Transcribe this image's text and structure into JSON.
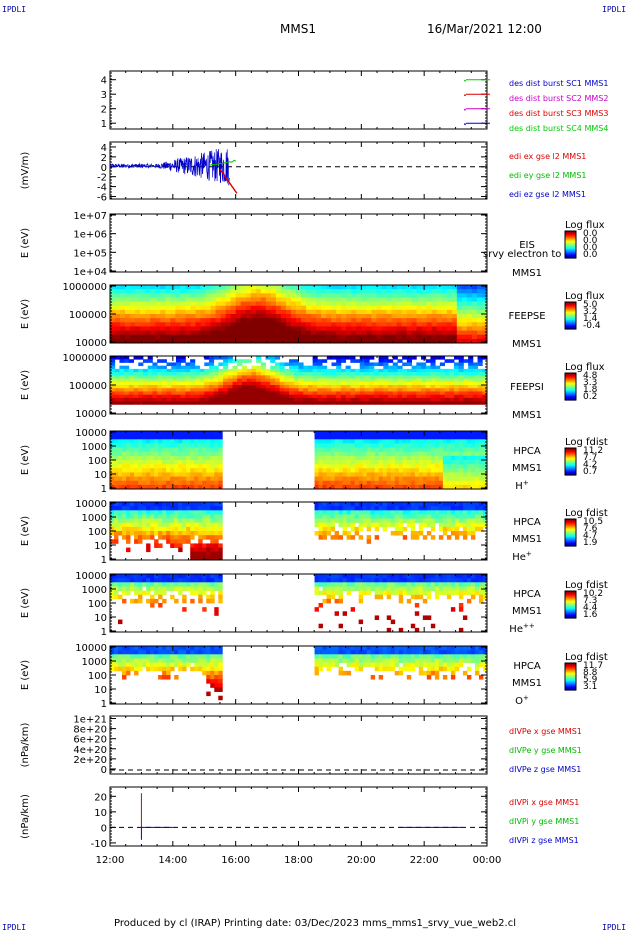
{
  "header": {
    "corner_label": "IPDLI",
    "spacecraft": "MMS1",
    "datetime": "16/Mar/2021 12:00"
  },
  "footer": {
    "text": "Produced by cl (IRAP)    Printing date: 03/Dec/2023    mms_mms1_srvy_vue_web2.cl"
  },
  "chart_data": {
    "type": "multi-panel",
    "x_ticks": [
      "12:00",
      "14:00",
      "16:00",
      "18:00",
      "20:00",
      "22:00",
      "00:00"
    ],
    "x_range_hours": [
      12,
      24
    ],
    "panels": [
      {
        "id": "des-dist",
        "type": "line",
        "y_ticks": [
          "4",
          "3",
          "2",
          "1"
        ],
        "ylim": [
          0.6,
          4.6
        ],
        "legend": [
          {
            "label": "des dist burst SC1 MMS1",
            "color": "#0000cc"
          },
          {
            "label": "des dist burst SC2 MMS2",
            "color": "#cc00cc"
          },
          {
            "label": "des dist burst SC3 MMS3",
            "color": "#dd0000"
          },
          {
            "label": "des dist burst SC4 MMS4",
            "color": "#00cc00"
          }
        ]
      },
      {
        "id": "edi-e",
        "type": "line",
        "ylabel": "(mV/m)",
        "y_ticks": [
          "4",
          "2",
          "0",
          "-2",
          "-4",
          "-6"
        ],
        "ylim": [
          -6.5,
          5
        ],
        "legend": [
          {
            "label": "edi ex gse l2 MMS1",
            "color": "#dd0000"
          },
          {
            "label": "edi ey gse l2 MMS1",
            "color": "#00bb00"
          },
          {
            "label": "edi ez gse l2 MMS1",
            "color": "#0000cc"
          }
        ]
      },
      {
        "id": "eis",
        "type": "heatmap",
        "ylabel": "E (eV)",
        "y_ticks": [
          "1e+07",
          "1e+06",
          "1e+05",
          "1e+04"
        ],
        "side_labels": [
          "EIS",
          "MMS1"
        ],
        "overlay_text": "srvy electron to",
        "colorbar_title": "Log flux",
        "colorbar_ticks": [
          "0.0",
          "0.0",
          "0.0",
          "0.0"
        ],
        "empty": true
      },
      {
        "id": "feepse",
        "type": "heatmap",
        "ylabel": "E (eV)",
        "y_ticks": [
          "1000000",
          "100000",
          "10000"
        ],
        "side_labels": [
          "FEEPSE",
          "MMS1"
        ],
        "colorbar_title": "Log flux",
        "colorbar_ticks": [
          "5.0",
          "3.2",
          "1.4",
          "-0.4"
        ]
      },
      {
        "id": "feepsi",
        "type": "heatmap",
        "ylabel": "E (eV)",
        "y_ticks": [
          "1000000",
          "100000",
          "10000"
        ],
        "side_labels": [
          "FEEPSI",
          "MMS1"
        ],
        "colorbar_title": "Log flux",
        "colorbar_ticks": [
          "4.8",
          "3.3",
          "1.8",
          "0.2"
        ]
      },
      {
        "id": "hpca-h",
        "type": "heatmap",
        "ylabel": "E (eV)",
        "y_ticks": [
          "10000",
          "1000",
          "100",
          "10",
          "1"
        ],
        "side_labels": [
          "HPCA",
          "MMS1"
        ],
        "species": "H",
        "species_charge": "+",
        "colorbar_title": "Log fdist",
        "colorbar_ticks": [
          "11.2",
          "7.7",
          "4.2",
          "0.7"
        ]
      },
      {
        "id": "hpca-he",
        "type": "heatmap",
        "ylabel": "E (eV)",
        "y_ticks": [
          "10000",
          "1000",
          "100",
          "10",
          "1"
        ],
        "side_labels": [
          "HPCA",
          "MMS1"
        ],
        "species": "He",
        "species_charge": "+",
        "colorbar_title": "Log fdist",
        "colorbar_ticks": [
          "10.5",
          "7.6",
          "4.7",
          "1.9"
        ]
      },
      {
        "id": "hpca-he2",
        "type": "heatmap",
        "ylabel": "E (eV)",
        "y_ticks": [
          "10000",
          "1000",
          "100",
          "10",
          "1"
        ],
        "side_labels": [
          "HPCA",
          "MMS1"
        ],
        "species": "He",
        "species_charge": "++",
        "colorbar_title": "Log fdist",
        "colorbar_ticks": [
          "10.2",
          "7.3",
          "4.4",
          "1.6"
        ]
      },
      {
        "id": "hpca-o",
        "type": "heatmap",
        "ylabel": "E (eV)",
        "y_ticks": [
          "10000",
          "1000",
          "100",
          "10",
          "1"
        ],
        "side_labels": [
          "HPCA",
          "MMS1"
        ],
        "species": "O",
        "species_charge": "+",
        "colorbar_title": "Log fdist",
        "colorbar_ticks": [
          "11.7",
          "8.8",
          "5.9",
          "3.1"
        ]
      },
      {
        "id": "divpe",
        "type": "line",
        "ylabel": "(nPa/km)",
        "y_ticks": [
          "1e+21",
          "8e+20",
          "6e+20",
          "4e+20",
          "2e+20",
          "0"
        ],
        "ylim": [
          -1e+20,
          1.05e+21
        ],
        "legend": [
          {
            "label": "dIVPe x gse MMS1",
            "color": "#dd0000"
          },
          {
            "label": "dIVPe y gse MMS1",
            "color": "#00bb00"
          },
          {
            "label": "dIVPe z gse MMS1",
            "color": "#0000cc"
          }
        ]
      },
      {
        "id": "divpi",
        "type": "line",
        "ylabel": "(nPa/km)",
        "y_ticks": [
          "20",
          "10",
          "0",
          "-10"
        ],
        "ylim": [
          -12,
          26
        ],
        "legend": [
          {
            "label": "dIVPi x gse MMS1",
            "color": "#dd0000"
          },
          {
            "label": "dIVPi y gse MMS1",
            "color": "#00bb00"
          },
          {
            "label": "dIVPi z gse MMS1",
            "color": "#0000cc"
          }
        ]
      }
    ]
  }
}
